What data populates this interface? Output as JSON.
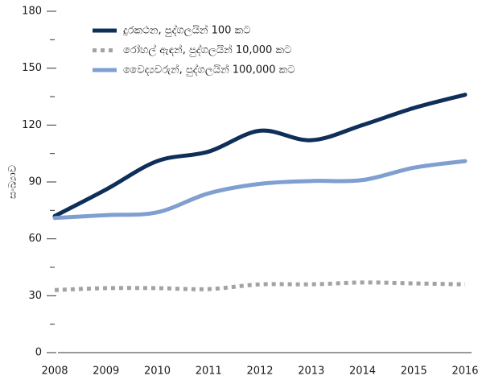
{
  "chart_data": {
    "type": "line",
    "y_label": "සංඛ්‍යාව",
    "x": [
      2008,
      2009,
      2010,
      2011,
      2012,
      2013,
      2014,
      2015,
      2016
    ],
    "xlim": [
      2008,
      2016
    ],
    "xticks": [
      2008,
      2009,
      2010,
      2011,
      2012,
      2013,
      2014,
      2015,
      2016
    ],
    "ylim": [
      0,
      180
    ],
    "yticks": [
      0,
      30,
      60,
      90,
      120,
      150,
      180
    ],
    "legend": "top-left",
    "series": [
      {
        "name": "දුරකථන, පුද්ගලයින් 100 කට",
        "color": "#0e2f5a",
        "style": "solid",
        "values": [
          72,
          86,
          101,
          106,
          117,
          112,
          120,
          129,
          136
        ]
      },
      {
        "name": "රෝහල් ඇඳන්, පුද්ගලයින් 10,000 කට",
        "color": "#a3a3a3",
        "style": "dotted",
        "values": [
          33,
          34,
          34,
          33.5,
          36,
          36,
          37,
          36.5,
          36
        ]
      },
      {
        "name": "වෛද්‍යවරුන්, පුද්ගලයින් 100,000 කට",
        "color": "#7f9fd1",
        "style": "solid",
        "values": [
          71,
          72.5,
          74,
          84,
          89,
          90.5,
          91,
          97.5,
          101
        ]
      }
    ]
  }
}
